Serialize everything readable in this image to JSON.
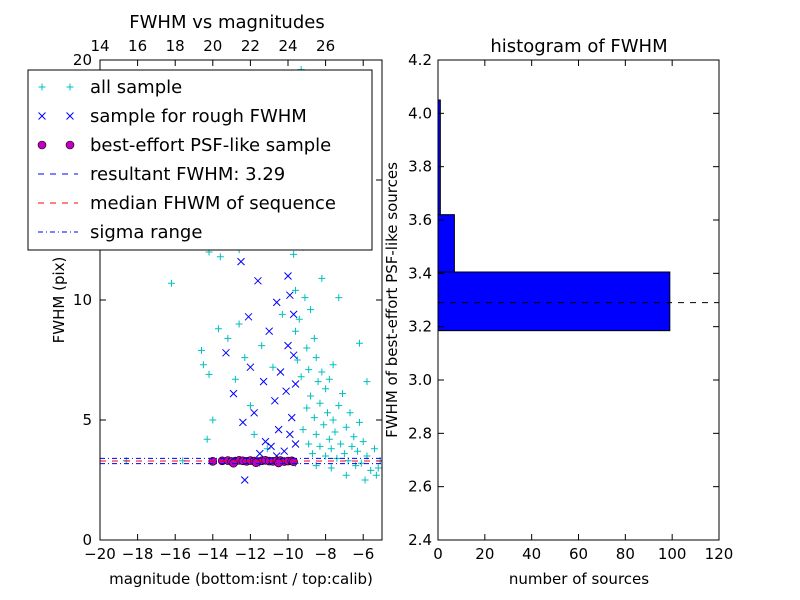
{
  "left_panel": {
    "title": "FWHM vs magnitudes",
    "xlabel": "magnitude (bottom:isnt / top:calib)",
    "ylabel": "FWHM (pix)",
    "legend": [
      {
        "label": "all sample",
        "marker": "plus",
        "color": "#00bfbf"
      },
      {
        "label": "sample for rough FWHM",
        "marker": "x",
        "color": "#0000ff"
      },
      {
        "label": "best-effort PSF-like sample",
        "marker": "circle",
        "color": "#bf00bf"
      },
      {
        "label": "resultant FWHM: 3.29",
        "marker": "dash",
        "color": "#0000ff"
      },
      {
        "label": "median FHWM of sequence",
        "marker": "dash",
        "color": "#ff0000"
      },
      {
        "label": "sigma range",
        "marker": "dashdot",
        "color": "#0000ff"
      }
    ]
  },
  "right_panel": {
    "title": "histogram of FWHM",
    "xlabel": "number of sources",
    "ylabel": "FWHM of best-effort PSF-like sources"
  },
  "chart_data": [
    {
      "type": "scatter",
      "title": "FWHM vs magnitudes",
      "xlabel": "magnitude (bottom:isnt / top:calib)",
      "ylabel": "FWHM (pix)",
      "xlim": [
        -20,
        -5
      ],
      "ylim": [
        0,
        20
      ],
      "xticks": [
        "−20",
        "−18",
        "−16",
        "−14",
        "−12",
        "−10",
        "−8",
        "−6"
      ],
      "yticks": [
        "0",
        "5",
        "10",
        "15",
        "20"
      ],
      "top_axis_ticks": [
        "14",
        "16",
        "18",
        "20",
        "22",
        "24",
        "26"
      ],
      "top_axis_offset": 34,
      "legend_position": "upper-left",
      "series": [
        {
          "name": "all sample",
          "marker": "plus",
          "color": "#00bfbf",
          "points": [
            [
              -16.2,
              10.7
            ],
            [
              -14.6,
              7.9
            ],
            [
              -14.5,
              7.3
            ],
            [
              -14.2,
              6.9
            ],
            [
              -14.0,
              5.0
            ],
            [
              -14.3,
              4.2
            ],
            [
              -13.7,
              8.8
            ],
            [
              -13.2,
              8.4
            ],
            [
              -12.8,
              6.7
            ],
            [
              -12.6,
              9.0
            ],
            [
              -12.3,
              7.6
            ],
            [
              -12.0,
              5.6
            ],
            [
              -11.8,
              4.4
            ],
            [
              -11.4,
              8.1
            ],
            [
              -11.1,
              3.8
            ],
            [
              -10.8,
              7.2
            ],
            [
              -10.5,
              12.6
            ],
            [
              -10.3,
              9.4
            ],
            [
              -10.2,
              18.7
            ],
            [
              -10.0,
              14.6
            ],
            [
              -14.2,
              12.0
            ],
            [
              -13.6,
              11.8
            ],
            [
              -12.6,
              12.1
            ],
            [
              -11.2,
              12.3
            ],
            [
              -9.9,
              16.0
            ],
            [
              -9.8,
              13.4
            ],
            [
              -9.7,
              11.9
            ],
            [
              -9.6,
              10.4
            ],
            [
              -9.6,
              8.7
            ],
            [
              -9.5,
              7.5
            ],
            [
              -9.4,
              9.2
            ],
            [
              -9.3,
              6.8
            ],
            [
              -9.2,
              12.2
            ],
            [
              -9.2,
              4.6
            ],
            [
              -9.1,
              10.1
            ],
            [
              -9.0,
              8.0
            ],
            [
              -9.0,
              5.5
            ],
            [
              -8.9,
              7.1
            ],
            [
              -8.9,
              4.0
            ],
            [
              -8.8,
              9.6
            ],
            [
              -8.8,
              6.0
            ],
            [
              -8.7,
              3.6
            ],
            [
              -8.6,
              8.4
            ],
            [
              -8.6,
              5.1
            ],
            [
              -8.5,
              7.6
            ],
            [
              -8.5,
              4.4
            ],
            [
              -8.4,
              6.6
            ],
            [
              -8.3,
              3.9
            ],
            [
              -8.3,
              5.7
            ],
            [
              -8.2,
              7.0
            ],
            [
              -8.1,
              4.8
            ],
            [
              -8.0,
              6.3
            ],
            [
              -8.0,
              3.5
            ],
            [
              -7.9,
              5.3
            ],
            [
              -7.8,
              4.2
            ],
            [
              -7.8,
              6.7
            ],
            [
              -7.7,
              3.8
            ],
            [
              -7.6,
              5.0
            ],
            [
              -7.6,
              7.3
            ],
            [
              -7.5,
              4.5
            ],
            [
              -7.4,
              3.4
            ],
            [
              -7.3,
              5.6
            ],
            [
              -7.2,
              4.0
            ],
            [
              -7.1,
              6.1
            ],
            [
              -7.0,
              3.6
            ],
            [
              -6.9,
              4.7
            ],
            [
              -6.8,
              3.3
            ],
            [
              -6.7,
              5.3
            ],
            [
              -6.6,
              3.9
            ],
            [
              -6.5,
              4.3
            ],
            [
              -6.4,
              3.1
            ],
            [
              -6.3,
              3.7
            ],
            [
              -6.2,
              4.9
            ],
            [
              -6.1,
              3.2
            ],
            [
              -6.0,
              4.1
            ],
            [
              -5.8,
              3.5
            ],
            [
              -5.6,
              2.9
            ],
            [
              -5.4,
              3.8
            ],
            [
              -5.2,
              3.0
            ],
            [
              -5.1,
              3.3
            ],
            [
              -8.4,
              14.8
            ],
            [
              -7.9,
              12.6
            ],
            [
              -8.8,
              17.0
            ],
            [
              -7.3,
              10.1
            ],
            [
              -6.2,
              8.2
            ],
            [
              -5.8,
              6.6
            ],
            [
              -9.4,
              15.7
            ],
            [
              -8.2,
              10.9
            ],
            [
              -9.6,
              3.2
            ],
            [
              -8.5,
              3.1
            ],
            [
              -7.7,
              3.0
            ],
            [
              -6.9,
              2.7
            ],
            [
              -5.9,
              2.5
            ],
            [
              -5.3,
              2.7
            ],
            [
              -9.3,
              19.6
            ],
            [
              -7.6,
              19.3
            ],
            [
              -13.0,
              3.3
            ],
            [
              -11.5,
              3.2
            ],
            [
              -15.6,
              3.3
            ],
            [
              -18.6,
              3.3
            ]
          ]
        },
        {
          "name": "sample for rough FWHM",
          "marker": "x",
          "color": "#0000ff",
          "points": [
            [
              -13.3,
              7.8
            ],
            [
              -12.9,
              6.1
            ],
            [
              -12.5,
              11.6
            ],
            [
              -12.4,
              4.9
            ],
            [
              -12.1,
              9.3
            ],
            [
              -12.0,
              7.2
            ],
            [
              -11.8,
              5.3
            ],
            [
              -11.6,
              10.8
            ],
            [
              -11.3,
              6.6
            ],
            [
              -11.2,
              4.1
            ],
            [
              -11.0,
              8.7
            ],
            [
              -10.9,
              3.9
            ],
            [
              -10.8,
              12.5
            ],
            [
              -10.7,
              5.8
            ],
            [
              -10.6,
              9.9
            ],
            [
              -10.5,
              4.6
            ],
            [
              -10.4,
              7.0
            ],
            [
              -10.3,
              14.2
            ],
            [
              -10.2,
              3.7
            ],
            [
              -10.1,
              6.2
            ],
            [
              -10.0,
              11.0
            ],
            [
              -10.0,
              8.1
            ],
            [
              -9.9,
              4.4
            ],
            [
              -9.9,
              10.2
            ],
            [
              -9.8,
              5.1
            ],
            [
              -9.8,
              13.0
            ],
            [
              -9.7,
              7.7
            ],
            [
              -9.7,
              9.4
            ],
            [
              -9.6,
              4.0
            ],
            [
              -9.6,
              6.5
            ],
            [
              -12.3,
              2.5
            ],
            [
              -11.5,
              3.6
            ],
            [
              -10.6,
              3.5
            ]
          ]
        },
        {
          "name": "best-effort PSF-like sample",
          "marker": "circle",
          "color": "#bf00bf",
          "points": [
            [
              -14.0,
              3.28
            ],
            [
              -13.5,
              3.3
            ],
            [
              -13.2,
              3.31
            ],
            [
              -13.0,
              3.27
            ],
            [
              -12.8,
              3.29
            ],
            [
              -12.6,
              3.32
            ],
            [
              -12.4,
              3.3
            ],
            [
              -12.2,
              3.28
            ],
            [
              -12.0,
              3.31
            ],
            [
              -11.8,
              3.29
            ],
            [
              -11.6,
              3.27
            ],
            [
              -11.4,
              3.3
            ],
            [
              -11.2,
              3.32
            ],
            [
              -11.0,
              3.29
            ],
            [
              -10.8,
              3.28
            ],
            [
              -10.6,
              3.3
            ],
            [
              -10.4,
              3.31
            ],
            [
              -10.2,
              3.27
            ],
            [
              -10.0,
              3.29
            ],
            [
              -9.8,
              3.3
            ],
            [
              -12.9,
              3.2
            ],
            [
              -11.7,
              3.22
            ],
            [
              -10.5,
              3.21
            ],
            [
              -9.7,
              3.26
            ]
          ]
        }
      ],
      "lines": [
        {
          "name": "resultant FWHM: 3.29",
          "y": 3.29,
          "style": "dashed",
          "color": "#0000ff"
        },
        {
          "name": "median FHWM of sequence",
          "y": 3.29,
          "style": "dashed",
          "color": "#ff0000"
        },
        {
          "name": "sigma range",
          "y": 3.18,
          "style": "dashdot",
          "color": "#0000ff"
        },
        {
          "name": "sigma range",
          "y": 3.4,
          "style": "dashdot",
          "color": "#0000ff"
        }
      ]
    },
    {
      "type": "bar",
      "orientation": "horizontal",
      "title": "histogram of FWHM",
      "xlabel": "number of sources",
      "ylabel": "FWHM of best-effort PSF-like sources",
      "xlim": [
        0,
        120
      ],
      "ylim": [
        2.4,
        4.2
      ],
      "xticks": [
        "0",
        "20",
        "40",
        "60",
        "80",
        "100",
        "120"
      ],
      "yticks": [
        "2.4",
        "2.6",
        "2.8",
        "3.0",
        "3.2",
        "3.4",
        "3.6",
        "3.8",
        "4.0",
        "4.2"
      ],
      "bars": [
        {
          "y0": 3.185,
          "y1": 3.405,
          "count": 99
        },
        {
          "y0": 3.405,
          "y1": 3.62,
          "count": 7
        },
        {
          "y0": 3.62,
          "y1": 4.05,
          "count": 1
        }
      ],
      "bar_color": "#0000ff",
      "reference_line": {
        "y": 3.29,
        "style": "dashed",
        "color": "#000000"
      }
    }
  ]
}
